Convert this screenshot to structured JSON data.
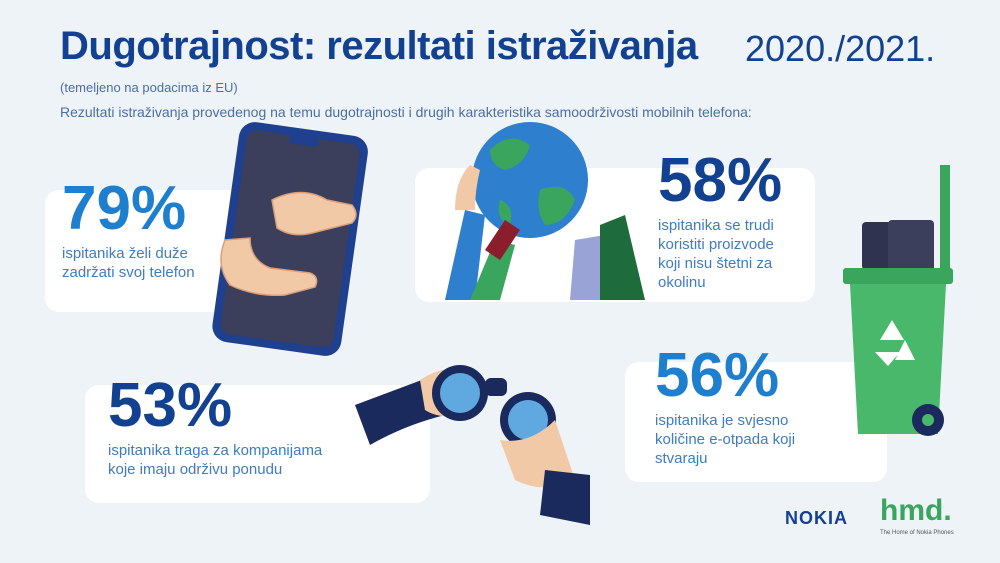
{
  "header": {
    "title": "Dugotrajnost: rezultati istraživanja",
    "year": "2020./2021.",
    "subtitle": "(temeljeno na podacima iz EU)",
    "description": "Rezultati istraživanja provedenog na temu dugotrajnosti i drugih karakteristika samoodrživosti mobilnih telefona:"
  },
  "stats": [
    {
      "value": "79%",
      "lines": [
        "ispitanika želi duže",
        "zadržati svoj telefon"
      ]
    },
    {
      "value": "58%",
      "lines": [
        "ispitanika se trudi",
        "koristiti proizvode",
        "koji nisu štetni za",
        "okolinu"
      ]
    },
    {
      "value": "53%",
      "lines": [
        "ispitanika traga za kompanijama",
        "koje imaju održivu ponudu"
      ]
    },
    {
      "value": "56%",
      "lines": [
        "ispitanika je svjesno",
        "količine e-otpada koji",
        "stvaraju"
      ]
    }
  ],
  "footer": {
    "nokia": "NOKIA",
    "hmd": "hmd.",
    "hmd_tagline": "The Home of Nokia Phones"
  }
}
